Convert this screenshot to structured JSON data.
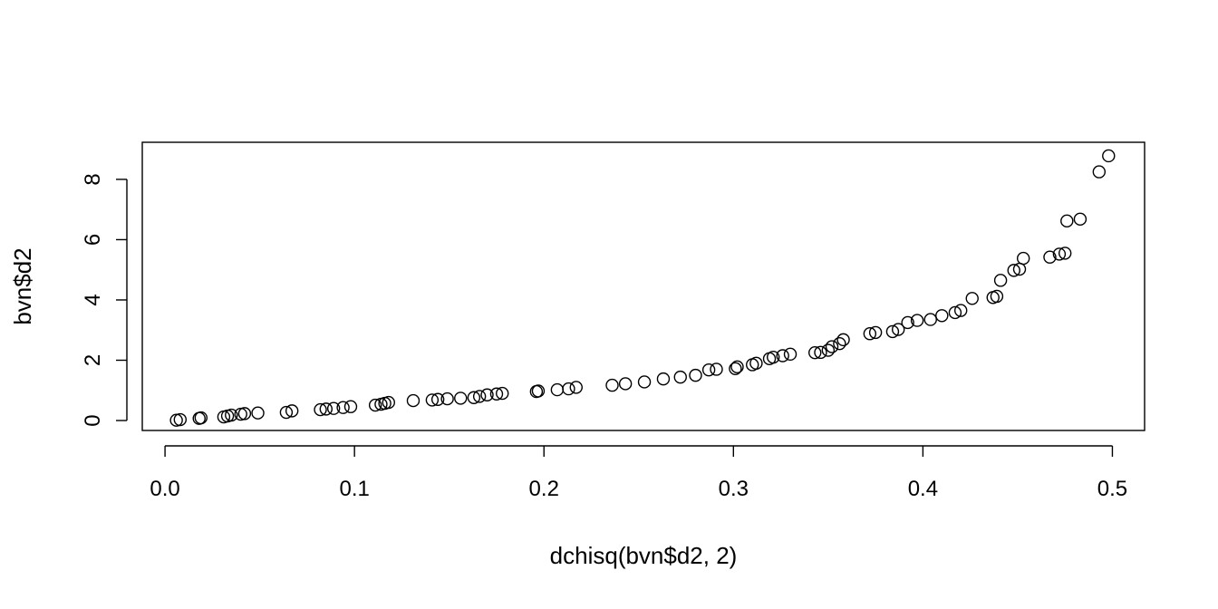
{
  "chart_data": {
    "type": "scatter",
    "title": "",
    "xlabel": "dchisq(bvn$d2, 2)",
    "ylabel": "bvn$d2",
    "xlim": [
      -0.012,
      0.517
    ],
    "ylim": [
      -0.33,
      9.23
    ],
    "x_ticks": [
      0.0,
      0.1,
      0.2,
      0.3,
      0.4,
      0.5
    ],
    "x_tick_labels": [
      "0.0",
      "0.1",
      "0.2",
      "0.3",
      "0.4",
      "0.5"
    ],
    "y_ticks": [
      0,
      2,
      4,
      6,
      8
    ],
    "y_tick_labels": [
      "0",
      "2",
      "4",
      "6",
      "8"
    ],
    "grid": false,
    "legend": "none",
    "marker": "open-circle",
    "colors": {
      "point": "#000000",
      "axis": "#000000",
      "background": "#ffffff"
    },
    "points": [
      [
        0.006,
        0.01
      ],
      [
        0.008,
        0.03
      ],
      [
        0.018,
        0.07
      ],
      [
        0.019,
        0.09
      ],
      [
        0.031,
        0.12
      ],
      [
        0.033,
        0.15
      ],
      [
        0.035,
        0.18
      ],
      [
        0.04,
        0.21
      ],
      [
        0.042,
        0.23
      ],
      [
        0.049,
        0.25
      ],
      [
        0.064,
        0.27
      ],
      [
        0.067,
        0.32
      ],
      [
        0.082,
        0.36
      ],
      [
        0.085,
        0.38
      ],
      [
        0.089,
        0.4
      ],
      [
        0.094,
        0.43
      ],
      [
        0.098,
        0.46
      ],
      [
        0.111,
        0.51
      ],
      [
        0.114,
        0.54
      ],
      [
        0.116,
        0.57
      ],
      [
        0.118,
        0.6
      ],
      [
        0.131,
        0.66
      ],
      [
        0.141,
        0.68
      ],
      [
        0.144,
        0.7
      ],
      [
        0.149,
        0.72
      ],
      [
        0.156,
        0.74
      ],
      [
        0.163,
        0.76
      ],
      [
        0.166,
        0.8
      ],
      [
        0.17,
        0.85
      ],
      [
        0.175,
        0.88
      ],
      [
        0.178,
        0.9
      ],
      [
        0.196,
        0.96
      ],
      [
        0.197,
        0.98
      ],
      [
        0.207,
        1.02
      ],
      [
        0.213,
        1.05
      ],
      [
        0.217,
        1.1
      ],
      [
        0.236,
        1.17
      ],
      [
        0.243,
        1.22
      ],
      [
        0.253,
        1.28
      ],
      [
        0.263,
        1.38
      ],
      [
        0.272,
        1.44
      ],
      [
        0.28,
        1.5
      ],
      [
        0.287,
        1.68
      ],
      [
        0.291,
        1.7
      ],
      [
        0.301,
        1.72
      ],
      [
        0.302,
        1.78
      ],
      [
        0.31,
        1.85
      ],
      [
        0.312,
        1.9
      ],
      [
        0.319,
        2.05
      ],
      [
        0.321,
        2.1
      ],
      [
        0.326,
        2.15
      ],
      [
        0.33,
        2.2
      ],
      [
        0.343,
        2.25
      ],
      [
        0.346,
        2.26
      ],
      [
        0.35,
        2.33
      ],
      [
        0.352,
        2.45
      ],
      [
        0.356,
        2.55
      ],
      [
        0.358,
        2.68
      ],
      [
        0.372,
        2.88
      ],
      [
        0.375,
        2.92
      ],
      [
        0.384,
        2.95
      ],
      [
        0.387,
        3.02
      ],
      [
        0.392,
        3.25
      ],
      [
        0.397,
        3.32
      ],
      [
        0.404,
        3.35
      ],
      [
        0.41,
        3.48
      ],
      [
        0.417,
        3.58
      ],
      [
        0.42,
        3.65
      ],
      [
        0.426,
        4.05
      ],
      [
        0.437,
        4.08
      ],
      [
        0.439,
        4.12
      ],
      [
        0.441,
        4.65
      ],
      [
        0.448,
        4.98
      ],
      [
        0.451,
        5.02
      ],
      [
        0.453,
        5.38
      ],
      [
        0.467,
        5.42
      ],
      [
        0.472,
        5.52
      ],
      [
        0.475,
        5.55
      ],
      [
        0.476,
        6.62
      ],
      [
        0.483,
        6.68
      ],
      [
        0.493,
        8.25
      ],
      [
        0.498,
        8.78
      ]
    ]
  }
}
